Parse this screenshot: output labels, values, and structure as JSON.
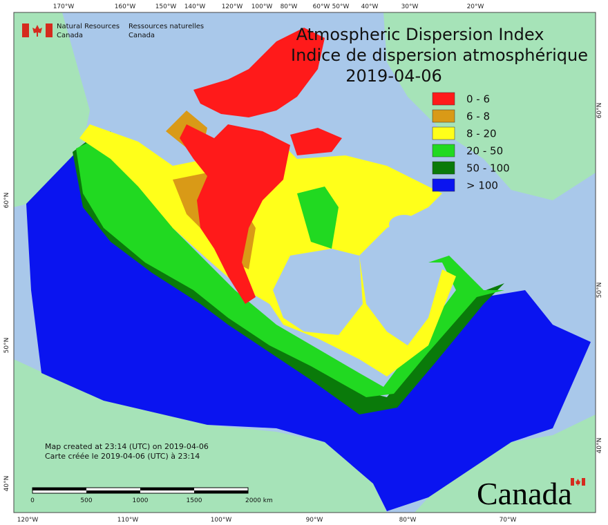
{
  "header": {
    "agency_en": [
      "Natural Resources",
      "Canada"
    ],
    "agency_fr": [
      "Ressources naturelles",
      "Canada"
    ]
  },
  "title": [
    "Atmospheric Dispersion Index",
    "Indice de dispersion atmosphérique",
    "2019-04-06"
  ],
  "legend": [
    {
      "label": "0 - 6",
      "color": "#ff1a1a"
    },
    {
      "label": "6 - 8",
      "color": "#d99a17"
    },
    {
      "label": "8 - 20",
      "color": "#ffff1a"
    },
    {
      "label": "20 - 50",
      "color": "#21d921"
    },
    {
      "label": "50 - 100",
      "color": "#0a7a0a"
    },
    {
      "label": "> 100",
      "color": "#0a14f0"
    }
  ],
  "graticule": {
    "top": [
      "170°W",
      "160°W",
      "150°W",
      "140°W",
      "120°W",
      "100°W",
      "80°W",
      "60°W",
      "50°W",
      "40°W",
      "30°W",
      "20°W"
    ],
    "bottom": [
      "120°W",
      "110°W",
      "100°W",
      "90°W",
      "80°W",
      "70°W"
    ],
    "left": [
      "60°N",
      "50°N",
      "40°N"
    ],
    "right": [
      "60°N",
      "50°N",
      "40°N"
    ]
  },
  "notes": [
    "Map created at 23:14 (UTC) on 2019-04-06",
    "Carte créée le 2019-04-06 (UTC) à 23:14"
  ],
  "scale_bar": [
    "0",
    "500",
    "1000",
    "1500",
    "2000 km"
  ],
  "wordmark": "Canada"
}
